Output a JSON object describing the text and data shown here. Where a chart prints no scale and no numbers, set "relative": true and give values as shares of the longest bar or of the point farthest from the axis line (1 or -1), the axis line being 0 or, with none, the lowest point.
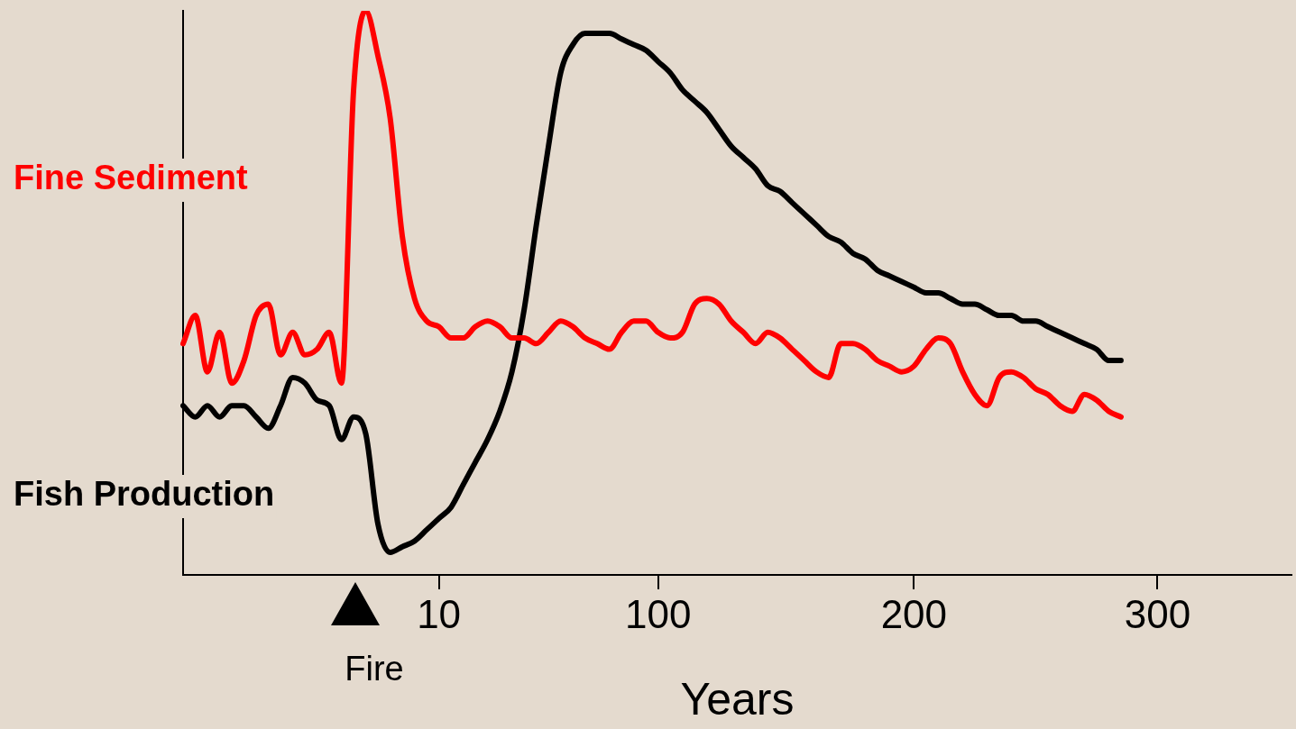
{
  "chart_data": {
    "type": "line",
    "relative": true,
    "xlabel": "Years",
    "legend": false,
    "grid": false,
    "categories": [
      null,
      null,
      null,
      null,
      null,
      null,
      null,
      null,
      null,
      null,
      null,
      null,
      null,
      null,
      null,
      null,
      null,
      null,
      null,
      null,
      null,
      "10",
      null,
      null,
      null,
      null,
      null,
      null,
      null,
      null,
      null,
      null,
      null,
      null,
      null,
      null,
      null,
      null,
      null,
      "100",
      null,
      null,
      null,
      null,
      null,
      null,
      null,
      null,
      null,
      null,
      null,
      null,
      null,
      null,
      null,
      null,
      null,
      null,
      null,
      null,
      "200",
      null,
      null,
      null,
      null,
      null,
      null,
      null,
      null,
      null,
      null,
      null,
      null,
      null,
      null,
      null,
      null,
      null,
      null,
      null,
      "300",
      null,
      null,
      null,
      null,
      null,
      null,
      null,
      null,
      null,
      null,
      null
    ],
    "series": [
      {
        "name": "Fine Sediment",
        "color": "#ff0000",
        "values": [
          0.41,
          0.46,
          0.36,
          0.43,
          0.34,
          0.38,
          0.46,
          0.48,
          0.39,
          0.43,
          0.39,
          0.4,
          0.43,
          0.34,
          0.86,
          1,
          0.92,
          0.81,
          0.6,
          0.49,
          0.45,
          0.44,
          0.42,
          0.42,
          0.44,
          0.45,
          0.44,
          0.42,
          0.42,
          0.41,
          0.43,
          0.45,
          0.44,
          0.42,
          0.41,
          0.4,
          0.43,
          0.45,
          0.45,
          0.43,
          0.42,
          0.43,
          0.48,
          0.49,
          0.48,
          0.45,
          0.43,
          0.41,
          0.43,
          0.42,
          0.4,
          0.38,
          0.36,
          0.35,
          0.41,
          0.41,
          0.4,
          0.38,
          0.37,
          0.36,
          0.37,
          0.4,
          0.42,
          0.41,
          0.36,
          0.32,
          0.3,
          0.35,
          0.36,
          0.35,
          0.33,
          0.32,
          0.3,
          0.29,
          0.32,
          0.31,
          0.29,
          0.28,
          null,
          null,
          null,
          null,
          null,
          null,
          null,
          null,
          null,
          null,
          null,
          null,
          null,
          null
        ]
      },
      {
        "name": "Fish Production",
        "color": "#000000",
        "values": [
          0.3,
          0.28,
          0.3,
          0.28,
          0.3,
          0.3,
          0.28,
          0.26,
          0.3,
          0.35,
          0.34,
          0.31,
          0.3,
          0.24,
          0.28,
          0.25,
          0.09,
          0.04,
          0.05,
          0.06,
          0.08,
          0.1,
          0.12,
          0.16,
          0.2,
          0.24,
          0.29,
          0.36,
          0.47,
          0.62,
          0.76,
          0.89,
          0.94,
          0.96,
          0.96,
          0.96,
          0.95,
          0.94,
          0.93,
          0.91,
          0.89,
          0.86,
          0.84,
          0.82,
          0.79,
          0.76,
          0.74,
          0.72,
          0.69,
          0.68,
          0.66,
          0.64,
          0.62,
          0.6,
          0.59,
          0.57,
          0.56,
          0.54,
          0.53,
          0.52,
          0.51,
          0.5,
          0.5,
          0.49,
          0.48,
          0.48,
          0.47,
          0.46,
          0.46,
          0.45,
          0.45,
          0.44,
          0.43,
          0.42,
          0.41,
          0.4,
          0.38,
          0.38,
          null,
          null,
          null,
          null,
          null,
          null,
          null,
          null,
          null,
          null,
          null,
          null,
          null,
          null
        ]
      }
    ],
    "annotations": [
      "Fire"
    ]
  }
}
